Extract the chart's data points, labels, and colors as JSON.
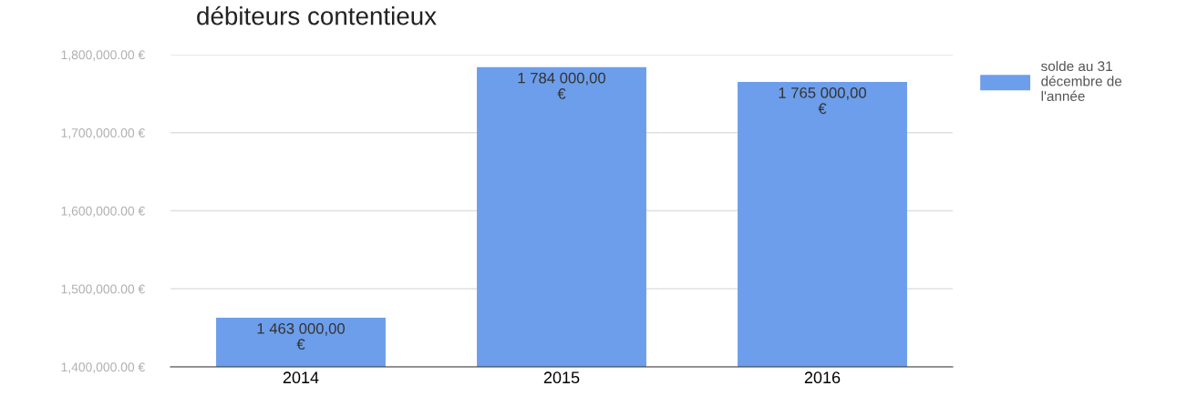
{
  "chart_data": {
    "type": "bar",
    "title": "débiteurs contentieux",
    "categories": [
      "2014",
      "2015",
      "2016"
    ],
    "series": [
      {
        "name": "solde au 31 décembre de l'année",
        "color": "#6d9eeb",
        "values": [
          1463000,
          1784000,
          1765000
        ],
        "value_labels": [
          "1 463 000,00 €",
          "1 784 000,00 €",
          "1 765 000,00 €"
        ]
      }
    ],
    "ylim": [
      1400000,
      1800000
    ],
    "yticks": [
      {
        "value": 1400000,
        "label": "1,400,000.00 €"
      },
      {
        "value": 1500000,
        "label": "1,500,000.00 €"
      },
      {
        "value": 1600000,
        "label": "1,600,000.00 €"
      },
      {
        "value": 1700000,
        "label": "1,700,000.00 €"
      },
      {
        "value": 1800000,
        "label": "1,800,000.00 €"
      }
    ],
    "grid": "y",
    "legend": "right"
  }
}
